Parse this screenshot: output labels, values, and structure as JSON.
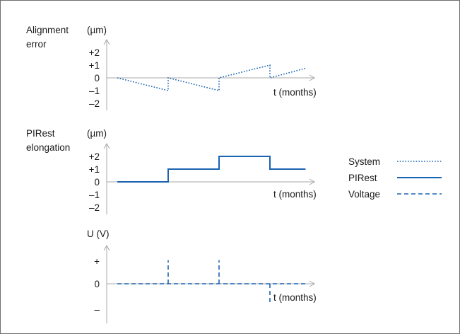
{
  "chart_data": [
    {
      "type": "line",
      "title": "",
      "ylabel": [
        "Alignment",
        "error"
      ],
      "yunit": "(µm)",
      "xlabel": "t (months)",
      "yticks": [
        "+2",
        "+1",
        "0",
        "–1",
        "–2"
      ],
      "ylim": [
        -2,
        2
      ],
      "series": [
        {
          "name": "System",
          "style": "dotted",
          "color": "#1a63b0",
          "x": [
            0,
            1,
            1,
            2,
            2,
            3,
            3,
            3.7
          ],
          "y": [
            0,
            -1,
            0,
            -1,
            0,
            1,
            0,
            0.75
          ]
        }
      ]
    },
    {
      "type": "line",
      "title": "",
      "ylabel": [
        "PIRest",
        "elongation"
      ],
      "yunit": "(µm)",
      "xlabel": "t (months)",
      "yticks": [
        "+2",
        "+1",
        "0",
        "–1",
        "–2"
      ],
      "ylim": [
        -2,
        2
      ],
      "series": [
        {
          "name": "PIRest",
          "style": "solid",
          "color": "#1a63b0",
          "x": [
            0,
            1,
            1,
            2,
            2,
            3,
            3,
            3.7
          ],
          "y": [
            0,
            0,
            1,
            1,
            2,
            2,
            1,
            1
          ]
        }
      ]
    },
    {
      "type": "line",
      "title": "",
      "ylabel": [
        "U (V)"
      ],
      "yunit": "",
      "xlabel": "t (months)",
      "yticks": [
        "+",
        "0",
        "–"
      ],
      "ylim": [
        -2,
        2
      ],
      "series": [
        {
          "name": "Voltage",
          "style": "dashed",
          "color": "#1a63b0",
          "segments": [
            {
              "x": [
                0,
                3.7
              ],
              "y": [
                0,
                0
              ]
            },
            {
              "x": [
                1,
                1
              ],
              "y": [
                0,
                1.85
              ]
            },
            {
              "x": [
                2,
                2
              ],
              "y": [
                0,
                1.85
              ]
            },
            {
              "x": [
                3,
                3
              ],
              "y": [
                0,
                -1.6
              ]
            }
          ]
        }
      ]
    }
  ],
  "legend": {
    "placement": "right",
    "items": [
      {
        "label": "System",
        "style": "dotted"
      },
      {
        "label": "PIRest",
        "style": "solid"
      },
      {
        "label": "Voltage",
        "style": "dashed"
      }
    ]
  }
}
